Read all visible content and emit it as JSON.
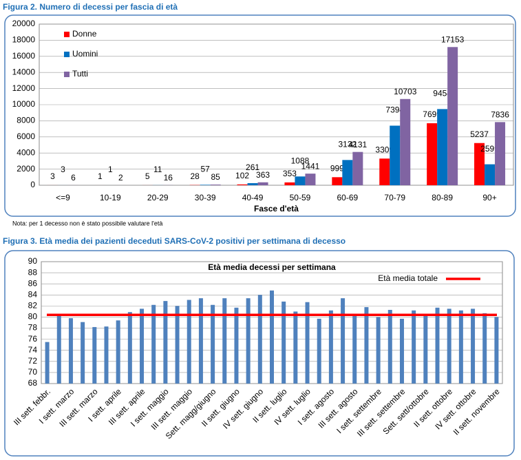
{
  "figure2_caption": "Figura 2. Numero di decessi per fascia di età",
  "note": "Nota: per 1 decesso non è stato possibile valutare l'età",
  "figure3_caption": "Figura 3. Età media dei pazienti deceduti SARS-CoV-2 positivi per settimana di decesso",
  "chart_data": [
    {
      "type": "grouped-bar",
      "x_label": "Fasce d'età",
      "categories": [
        "<=9",
        "10-19",
        "20-29",
        "30-39",
        "40-49",
        "50-59",
        "60-69",
        "70-79",
        "80-89",
        "90+"
      ],
      "series": [
        {
          "name": "Donne",
          "color": "#ff0000",
          "values": [
            3,
            1,
            5,
            28,
            102,
            353,
            999,
            3309,
            7699,
            5237
          ]
        },
        {
          "name": "Uomini",
          "color": "#0070c0",
          "values": [
            3,
            1,
            11,
            57,
            261,
            1088,
            3132,
            7394,
            9454,
            2599
          ]
        },
        {
          "name": "Tutti",
          "color": "#8064a2",
          "values": [
            6,
            2,
            16,
            85,
            363,
            1441,
            4131,
            10703,
            17153,
            7836
          ]
        }
      ],
      "ylim": [
        0,
        20000
      ],
      "yticks": [
        0,
        2000,
        4000,
        6000,
        8000,
        10000,
        12000,
        14000,
        16000,
        18000,
        20000
      ],
      "grid": true,
      "legend": "top-left"
    },
    {
      "type": "bar-with-reference",
      "title": "Età media decessi per settimana",
      "color": "#4f81bd",
      "categories": [
        "III sett. febbr.",
        null,
        "I sett. marzo",
        null,
        "III sett. marzo",
        null,
        "I sett. aprile",
        null,
        "III sett. aprile",
        null,
        "I sett. maggio",
        null,
        "III sett. maggio",
        null,
        "Sett. magg/giugno",
        null,
        "II sett. giugno",
        null,
        "IV sett. giugno",
        null,
        "II sett. luglio",
        null,
        "IV sett. luglio",
        null,
        "I sett. agosto",
        null,
        "III sett. agosto",
        null,
        "I sett. settembre",
        null,
        "III sett. settembre",
        null,
        "Sett. sett/ottobre",
        null,
        "II sett. ottobre",
        null,
        "IV sett. ottobre",
        null,
        "II sett. novembre"
      ],
      "values": [
        75.5,
        80.3,
        79.8,
        79.1,
        78.2,
        78.3,
        79.4,
        80.9,
        81.5,
        82.2,
        82.9,
        82.0,
        83.1,
        83.4,
        82.2,
        83.4,
        81.7,
        83.4,
        84.0,
        84.8,
        82.8,
        81.0,
        82.7,
        79.7,
        81.2,
        83.4,
        80.4,
        81.8,
        80.0,
        81.3,
        79.7,
        81.2,
        80.3,
        81.7,
        81.5,
        81.2,
        81.5,
        80.7,
        80.0
      ],
      "reference_line": {
        "name": "Età media totale",
        "value": 80.4,
        "color": "#ff0000"
      },
      "ylim": [
        68,
        90
      ],
      "yticks": [
        68,
        70,
        72,
        74,
        76,
        78,
        80,
        82,
        84,
        86,
        88,
        90
      ],
      "grid": true,
      "legend": "top-right"
    }
  ]
}
